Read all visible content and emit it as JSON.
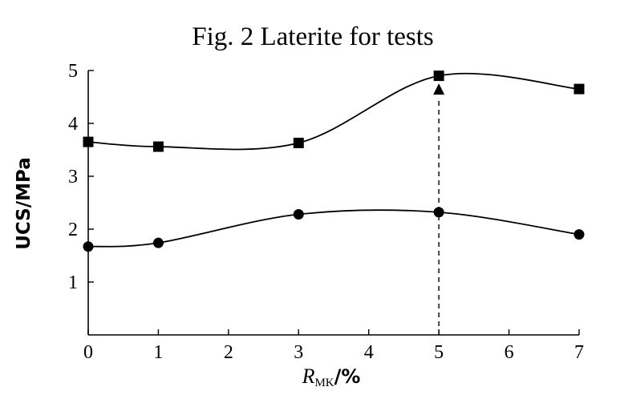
{
  "chart_data": {
    "type": "line",
    "title": "Fig. 2 Laterite for tests",
    "ylabel": "UCS/MPa",
    "xlabel": {
      "italic": "R",
      "subscript": "MK",
      "suffix": "/%"
    },
    "xlim": [
      0,
      7
    ],
    "ylim": [
      0,
      5
    ],
    "xticks": [
      "0",
      "1",
      "2",
      "3",
      "4",
      "5",
      "6",
      "7"
    ],
    "yticks": [
      "1",
      "2",
      "3",
      "4",
      "5"
    ],
    "grid": false,
    "series": [
      {
        "marker": "square",
        "x": [
          0,
          1,
          3,
          5,
          7
        ],
        "y": [
          3.65,
          3.56,
          3.63,
          4.9,
          4.65
        ]
      },
      {
        "marker": "circle",
        "x": [
          0,
          1,
          3,
          5,
          7
        ],
        "y": [
          1.67,
          1.74,
          2.28,
          2.32,
          1.9
        ]
      }
    ],
    "annotations": [
      {
        "type": "dashed-arrow",
        "x": 5,
        "from_y": 0,
        "to_y": 4.65
      }
    ],
    "colors": {
      "line": "#000000",
      "marker": "#000000",
      "background": "#ffffff"
    }
  }
}
